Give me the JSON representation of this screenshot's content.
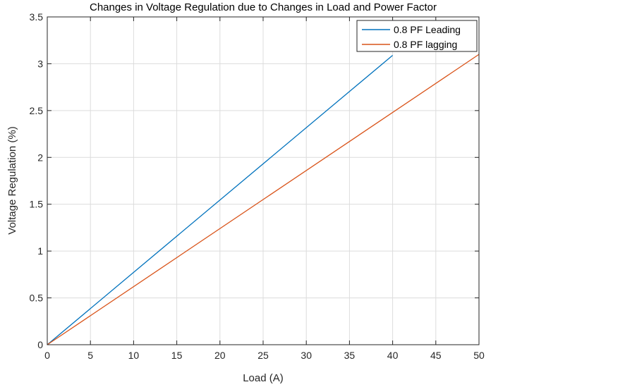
{
  "chart_data": {
    "type": "line",
    "title": "Changes in Voltage Regulation due to Changes in Load and Power Factor",
    "xlabel": "Load (A)",
    "ylabel": "Voltage Regulation (%)",
    "xlim": [
      0,
      50
    ],
    "ylim": [
      0,
      3.5
    ],
    "xticks": [
      0,
      5,
      10,
      15,
      20,
      25,
      30,
      35,
      40,
      45,
      50
    ],
    "yticks": [
      0,
      0.5,
      1,
      1.5,
      2,
      2.5,
      3,
      3.5
    ],
    "xtick_labels": [
      "0",
      "5",
      "10",
      "15",
      "20",
      "25",
      "30",
      "35",
      "40",
      "45",
      "50"
    ],
    "ytick_labels": [
      "0",
      "0.5",
      "1",
      "1.5",
      "2",
      "2.5",
      "3",
      "3.5"
    ],
    "grid": true,
    "legend_position": "top-right",
    "series": [
      {
        "name": "0.8 PF Leading",
        "color": "#0072BD",
        "x": [
          0,
          40
        ],
        "y": [
          0,
          3.09
        ]
      },
      {
        "name": "0.8 PF lagging",
        "color": "#D95319",
        "x": [
          0,
          50
        ],
        "y": [
          0,
          3.1
        ]
      }
    ]
  }
}
